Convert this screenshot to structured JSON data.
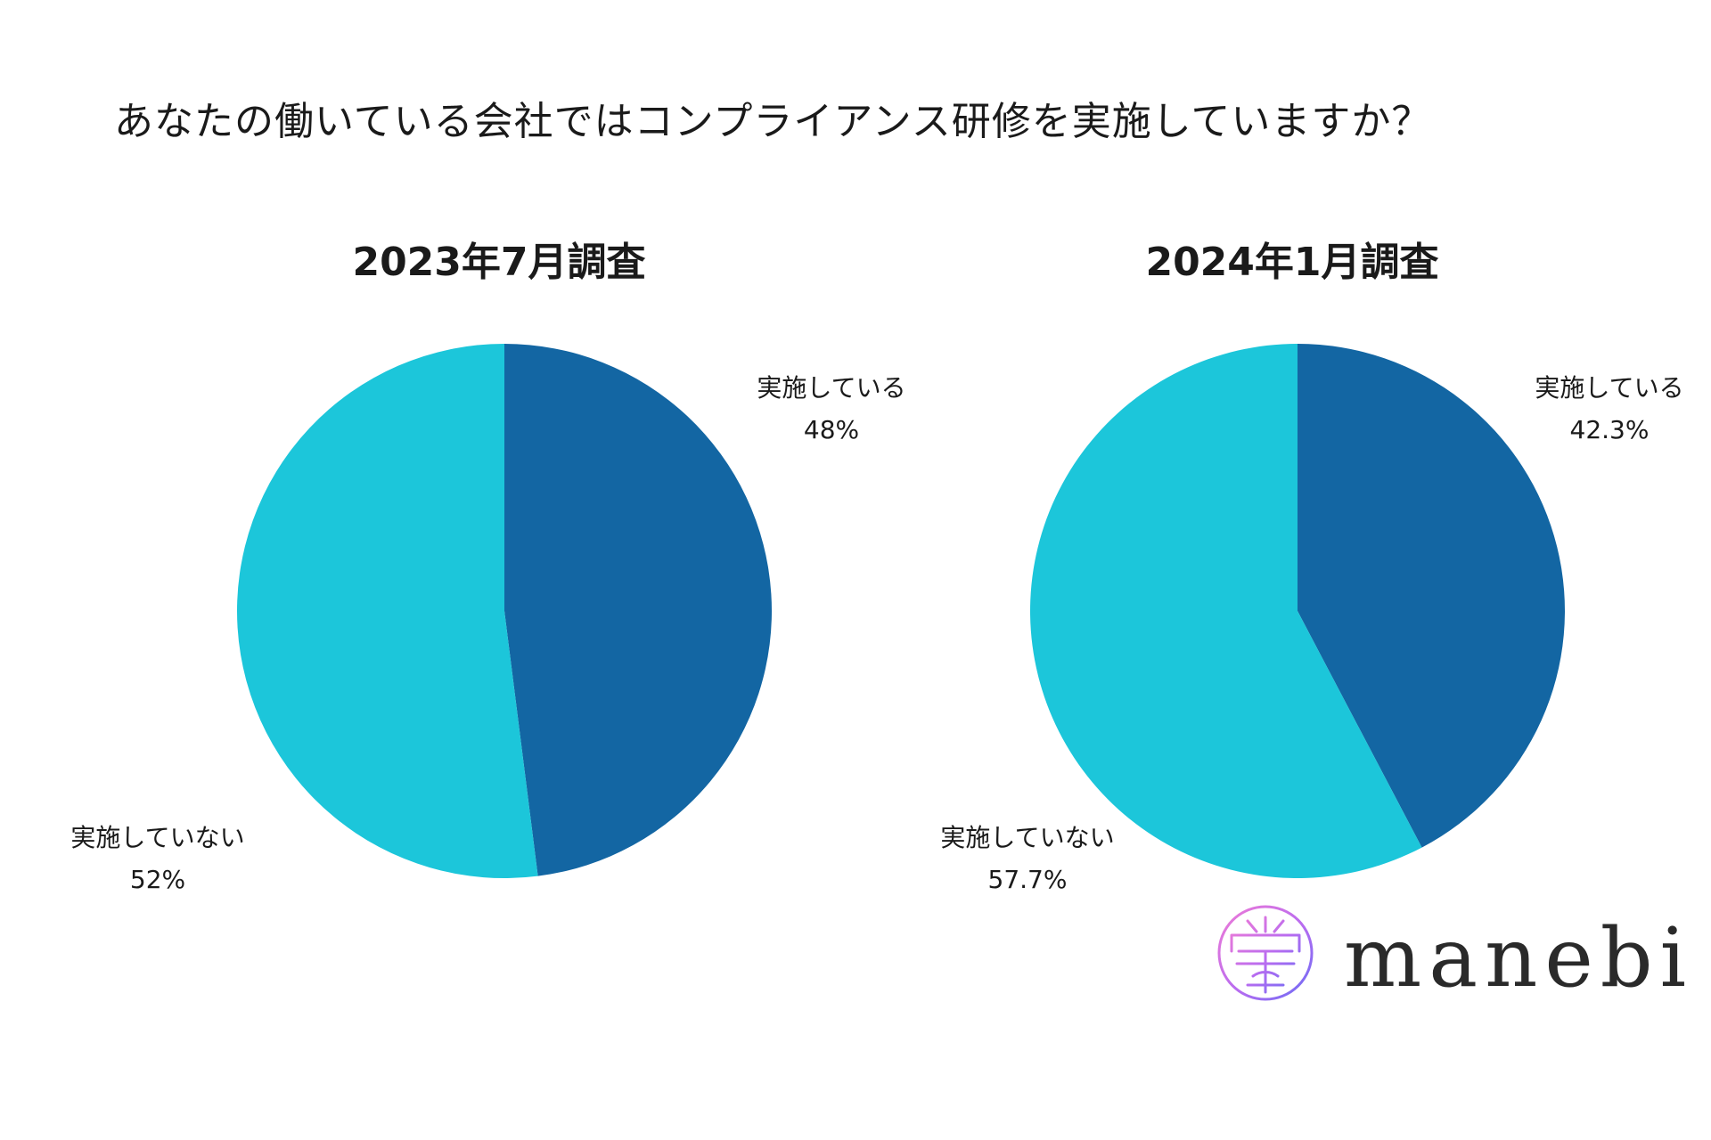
{
  "title": "あなたの働いている会社ではコンプライアンス研修を実施していますか？",
  "brand": {
    "name": "manebi",
    "mark_colors": [
      "#ef7bd6",
      "#b86cf0",
      "#6a6cf5"
    ]
  },
  "colors": {
    "implemented": "#1366a3",
    "not_implemented": "#1cc6da"
  },
  "chart_data": [
    {
      "type": "pie",
      "title": "2023年7月調査",
      "slices": [
        {
          "label": "実施している",
          "value": 48,
          "display": "48%",
          "color": "#1366a3",
          "label_position": "top-right"
        },
        {
          "label": "実施していない",
          "value": 52,
          "display": "52%",
          "color": "#1cc6da",
          "label_position": "bottom-left"
        }
      ]
    },
    {
      "type": "pie",
      "title": "2024年1月調査",
      "slices": [
        {
          "label": "実施している",
          "value": 42.3,
          "display": "42.3%",
          "color": "#1366a3",
          "label_position": "top-right"
        },
        {
          "label": "実施していない",
          "value": 57.7,
          "display": "57.7%",
          "color": "#1cc6da",
          "label_position": "bottom-left"
        }
      ]
    }
  ]
}
